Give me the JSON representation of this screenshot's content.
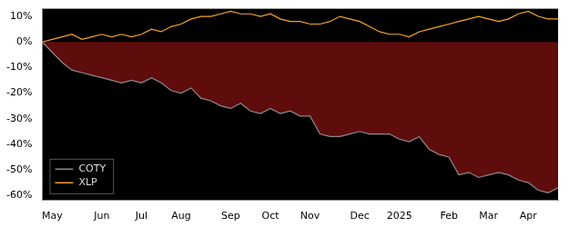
{
  "chart_data": {
    "type": "line",
    "categories": [
      null,
      "May",
      null,
      null,
      null,
      null,
      "Jun",
      null,
      null,
      null,
      "Jul",
      null,
      null,
      null,
      "Aug",
      null,
      null,
      null,
      null,
      "Sep",
      null,
      null,
      null,
      "Oct",
      null,
      null,
      null,
      "Nov",
      null,
      null,
      null,
      null,
      "Dec",
      null,
      null,
      null,
      "2025",
      null,
      null,
      null,
      null,
      "Feb",
      null,
      null,
      null,
      "Mar",
      null,
      null,
      null,
      "Apr",
      null,
      null,
      null
    ],
    "series": [
      {
        "name": "COTY",
        "color": "#8c8c8c",
        "values": [
          0,
          -4,
          -8,
          -11,
          -12,
          -13,
          -14,
          -15,
          -16,
          -15,
          -16,
          -14,
          -16,
          -19,
          -20,
          -18,
          -22,
          -23,
          -25,
          -26,
          -24,
          -27,
          -28,
          -26,
          -28,
          -27,
          -29,
          -29,
          -36,
          -37,
          -37,
          -36,
          -35,
          -36,
          -36,
          -36,
          -38,
          -39,
          -37,
          -42,
          -44,
          -45,
          -52,
          -51,
          -53,
          -52,
          -51,
          -52,
          -54,
          -55,
          -58,
          -59,
          -57
        ]
      },
      {
        "name": "XLP",
        "color": "#f5a623",
        "values": [
          0,
          1,
          2,
          3,
          1,
          2,
          3,
          2,
          3,
          2,
          3,
          5,
          4,
          6,
          7,
          9,
          10,
          10,
          11,
          12,
          11,
          11,
          10,
          11,
          9,
          8,
          8,
          7,
          7,
          8,
          10,
          9,
          8,
          6,
          4,
          3,
          3,
          2,
          4,
          5,
          6,
          7,
          8,
          9,
          10,
          9,
          8,
          9,
          11,
          12,
          10,
          9,
          9
        ]
      }
    ],
    "ylim": [
      -62,
      13
    ],
    "yticks": [
      {
        "value": -60,
        "label": "-60%"
      },
      {
        "value": -50,
        "label": "-50%"
      },
      {
        "value": -40,
        "label": "-40%"
      },
      {
        "value": -30,
        "label": "-30%"
      },
      {
        "value": -20,
        "label": "-20%"
      },
      {
        "value": -10,
        "label": "-10%"
      },
      {
        "value": 0,
        "label": "0%"
      },
      {
        "value": 10,
        "label": "10%"
      }
    ],
    "grid": false,
    "legend": "lower left"
  }
}
